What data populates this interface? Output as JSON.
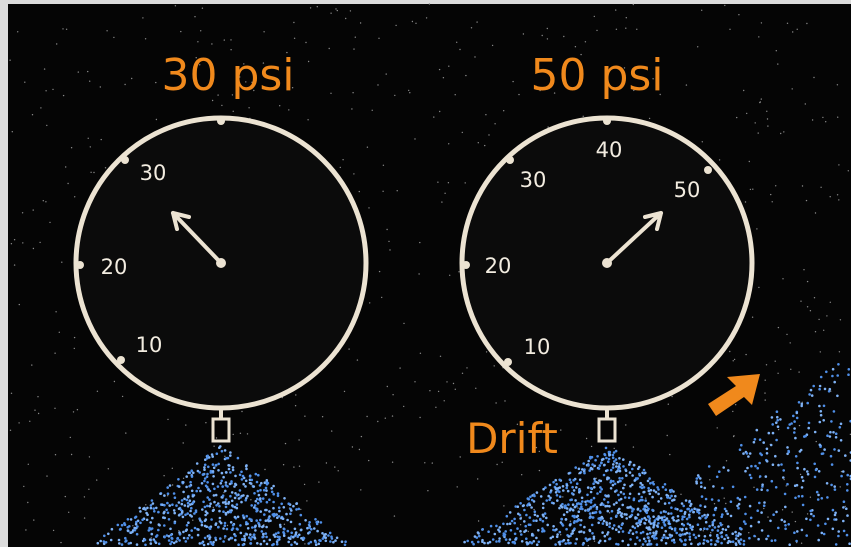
{
  "gauges": [
    {
      "title": "30 psi",
      "scale_labels": [
        "10",
        "20",
        "30"
      ]
    },
    {
      "title": "50 psi",
      "scale_labels": [
        "10",
        "20",
        "30",
        "40",
        "50"
      ]
    }
  ],
  "annotation": "Drift"
}
